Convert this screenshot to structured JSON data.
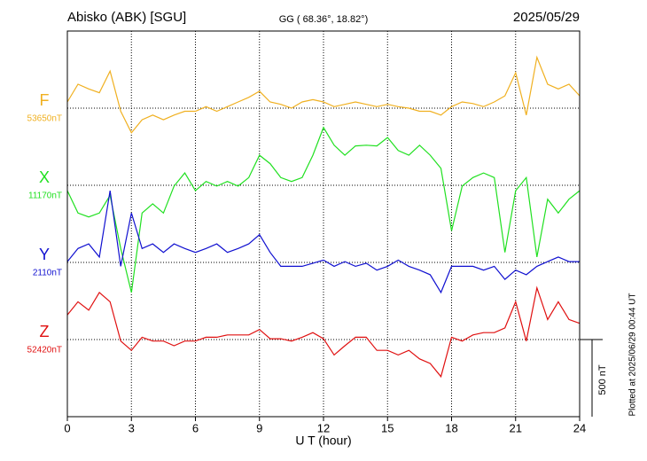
{
  "chart_data": {
    "type": "line",
    "title": "Abisko (ABK)  [SGU]",
    "subtitle": "GG ( 68.36°,  18.82°)",
    "date": "2025/05/29",
    "xlabel": "U T (hour)",
    "plotted_note": "Plotted at 2025/06/29 00:44 UT",
    "scale_bar": {
      "value": 500,
      "label": "500 nT"
    },
    "xlim": [
      0,
      24
    ],
    "xticks": [
      0,
      3,
      6,
      9,
      12,
      15,
      18,
      21,
      24
    ],
    "grid": true,
    "x": [
      0,
      0.5,
      1,
      1.5,
      2,
      2.5,
      3,
      3.5,
      4,
      4.5,
      5,
      5.5,
      6,
      6.5,
      7,
      7.5,
      8,
      8.5,
      9,
      9.5,
      10,
      10.5,
      11,
      11.5,
      12,
      12.5,
      13,
      13.5,
      14,
      14.5,
      15,
      15.5,
      16,
      16.5,
      17,
      17.5,
      18,
      18.5,
      19,
      19.5,
      20,
      20.5,
      21,
      21.5,
      22,
      22.5,
      23,
      23.5,
      24
    ],
    "series": [
      {
        "name": "F",
        "color": "#f0b020",
        "baseline": 53650,
        "baseline_label": "53650nT",
        "values": [
          53690,
          53805,
          53775,
          53750,
          53890,
          53630,
          53490,
          53575,
          53605,
          53575,
          53605,
          53630,
          53630,
          53660,
          53630,
          53660,
          53690,
          53720,
          53760,
          53690,
          53675,
          53650,
          53690,
          53705,
          53690,
          53660,
          53675,
          53690,
          53675,
          53660,
          53675,
          53660,
          53650,
          53630,
          53630,
          53605,
          53660,
          53690,
          53680,
          53660,
          53690,
          53730,
          53880,
          53605,
          53980,
          53805,
          53775,
          53805,
          53730
        ]
      },
      {
        "name": "X",
        "color": "#20e020",
        "baseline": 11170,
        "baseline_label": "11170nT",
        "values": [
          11135,
          10990,
          10965,
          10990,
          11105,
          10760,
          10475,
          10990,
          11050,
          10990,
          11165,
          11250,
          11135,
          11195,
          11165,
          11195,
          11165,
          11220,
          11365,
          11310,
          11220,
          11195,
          11220,
          11365,
          11545,
          11430,
          11365,
          11425,
          11430,
          11425,
          11480,
          11395,
          11365,
          11430,
          11365,
          11280,
          10875,
          11165,
          11220,
          11250,
          11220,
          10735,
          11135,
          11220,
          10705,
          11080,
          10990,
          11080,
          11135
        ]
      },
      {
        "name": "Y",
        "color": "#1010d0",
        "baseline": 2110,
        "baseline_label": "2110nT",
        "values": [
          2115,
          2200,
          2230,
          2145,
          2575,
          2085,
          2430,
          2200,
          2230,
          2175,
          2230,
          2200,
          2175,
          2200,
          2230,
          2175,
          2200,
          2230,
          2290,
          2175,
          2085,
          2085,
          2085,
          2105,
          2125,
          2085,
          2115,
          2085,
          2105,
          2060,
          2085,
          2125,
          2085,
          2060,
          2030,
          1915,
          2085,
          2085,
          2085,
          2060,
          2085,
          2000,
          2060,
          2030,
          2085,
          2115,
          2145,
          2115,
          2115
        ]
      },
      {
        "name": "Z",
        "color": "#e01010",
        "baseline": 52420,
        "baseline_label": "52420nT",
        "values": [
          52580,
          52665,
          52610,
          52725,
          52665,
          52410,
          52350,
          52435,
          52410,
          52410,
          52380,
          52410,
          52410,
          52435,
          52435,
          52450,
          52450,
          52450,
          52485,
          52425,
          52425,
          52410,
          52435,
          52465,
          52425,
          52320,
          52380,
          52435,
          52435,
          52350,
          52350,
          52320,
          52350,
          52295,
          52265,
          52180,
          52435,
          52410,
          52450,
          52465,
          52465,
          52495,
          52665,
          52410,
          52755,
          52550,
          52665,
          52550,
          52525
        ]
      }
    ]
  }
}
